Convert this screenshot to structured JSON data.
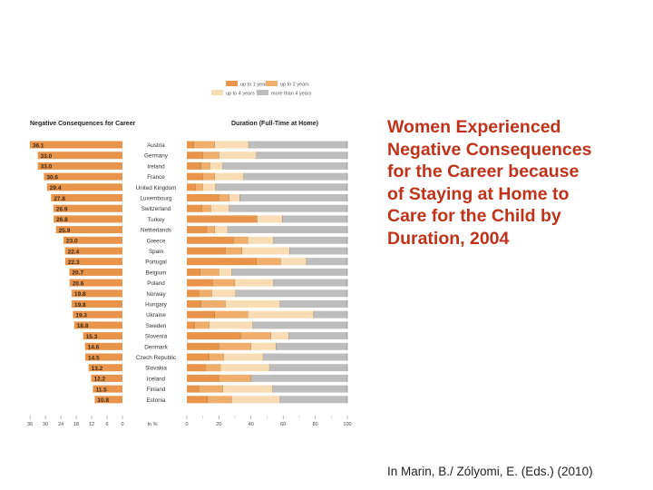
{
  "slide": {
    "title_lines": [
      "Women Experienced",
      "Negative Consequences",
      "for the Career because",
      "of Staying at Home to",
      "Care for the Child by",
      "Duration, 2004"
    ],
    "citation": "In Marin, B./ Zólyomi, E. (Eds.) (2010)"
  },
  "chart_data": [
    {
      "type": "bar",
      "orientation": "horizontal-reversed",
      "title": "Negative Consequences for Career",
      "xlabel": "In %",
      "xlim": [
        0,
        36
      ],
      "x_ticks": [
        36,
        30,
        24,
        18,
        12,
        6,
        0
      ],
      "grid": false,
      "color": "#e8944a",
      "categories": [
        "Austria",
        "Germany",
        "Ireland",
        "France",
        "United Kingdom",
        "Luxembourg",
        "Switzerland",
        "Turkey",
        "Netherlands",
        "Greece",
        "Spain",
        "Portugal",
        "Belgium",
        "Poland",
        "Norway",
        "Hungary",
        "Ukraine",
        "Sweden",
        "Slovenia",
        "Denmark",
        "Czech Republic",
        "Slovakia",
        "Iceland",
        "Finland",
        "Estonia"
      ],
      "values": [
        36.1,
        33.0,
        33.0,
        30.6,
        29.4,
        27.8,
        26.9,
        26.8,
        25.9,
        23.0,
        22.4,
        22.3,
        20.7,
        20.6,
        19.8,
        19.8,
        19.3,
        18.8,
        15.3,
        14.6,
        14.5,
        13.2,
        12.2,
        11.5,
        10.8
      ],
      "value_labels": [
        "36.1",
        "33.0",
        "33.0",
        "30.6",
        "29.4",
        "27.8",
        "26.9",
        "26.8",
        "25.9",
        "23.0",
        "22.4",
        "22.3",
        "20.7",
        "20.6",
        "19.8",
        "19.8",
        "19.3",
        "18.8",
        "15.3",
        "14.6",
        "14.5",
        "13.2",
        "12.2",
        "11.5",
        "10.8"
      ]
    },
    {
      "type": "bar",
      "orientation": "horizontal-stacked",
      "title": "Duration (Full-Time at Home)",
      "xlabel": "",
      "xlim": [
        0,
        100
      ],
      "x_ticks": [
        0,
        20,
        40,
        60,
        80,
        100
      ],
      "grid": false,
      "legend_position": "top",
      "categories": [
        "Austria",
        "Germany",
        "Ireland",
        "France",
        "United Kingdom",
        "Luxembourg",
        "Switzerland",
        "Turkey",
        "Netherlands",
        "Greece",
        "Spain",
        "Portugal",
        "Belgium",
        "Poland",
        "Norway",
        "Hungary",
        "Ukraine",
        "Sweden",
        "Slovenia",
        "Denmark",
        "Czech Republic",
        "Slovakia",
        "Iceland",
        "Finland",
        "Estonia"
      ],
      "series": [
        {
          "name": "up to 1 year",
          "color": "#e8944a",
          "values": [
            4.5,
            10,
            9,
            10,
            5.5,
            20,
            9.5,
            43,
            12.5,
            29,
            24,
            43.5,
            8.5,
            16,
            7.5,
            9,
            17.5,
            5,
            33.5,
            20,
            14,
            11.5,
            20,
            7.5,
            13
          ]
        },
        {
          "name": "up to 2 years",
          "color": "#efae6c",
          "values": [
            13,
            10,
            5.5,
            7.5,
            4.5,
            6.5,
            5.5,
            1,
            5,
            9,
            10.5,
            15,
            11.5,
            14,
            8,
            15,
            20.5,
            9,
            19,
            20,
            9,
            9.5,
            20,
            15,
            15
          ]
        },
        {
          "name": "up to 4 years",
          "color": "#f8dcb3",
          "values": [
            21,
            23.5,
            8,
            18,
            8,
            6.5,
            11.5,
            15.5,
            8,
            16,
            29.5,
            16,
            8,
            24,
            15,
            34,
            41,
            27,
            11,
            15.5,
            24.5,
            30.5,
            0,
            31,
            30
          ]
        },
        {
          "name": "more than 4 years",
          "color": "#bdbdbd",
          "values": [
            61.5,
            56.5,
            77.5,
            64.5,
            82,
            67,
            73.5,
            40.5,
            74.5,
            46,
            36,
            25.5,
            72,
            46,
            69.5,
            42,
            21,
            59,
            36.5,
            44.5,
            52.5,
            48.5,
            60,
            46.5,
            42
          ]
        }
      ]
    }
  ]
}
